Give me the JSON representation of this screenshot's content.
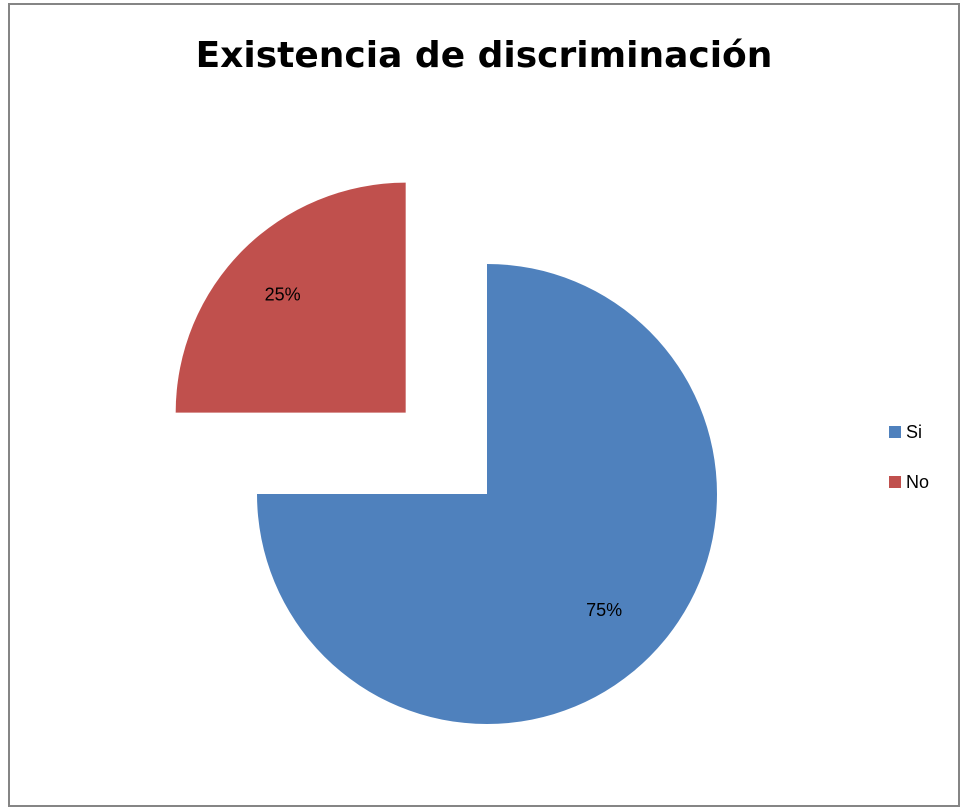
{
  "chart_data": {
    "type": "pie",
    "title": "Existencia de discriminación",
    "categories": [
      "Si",
      "No"
    ],
    "values": [
      75,
      25
    ],
    "data_labels": [
      "75%",
      "25%"
    ],
    "colors": [
      "#4F81BD",
      "#C0504D"
    ],
    "exploded": [
      "No"
    ],
    "legend_position": "right"
  }
}
